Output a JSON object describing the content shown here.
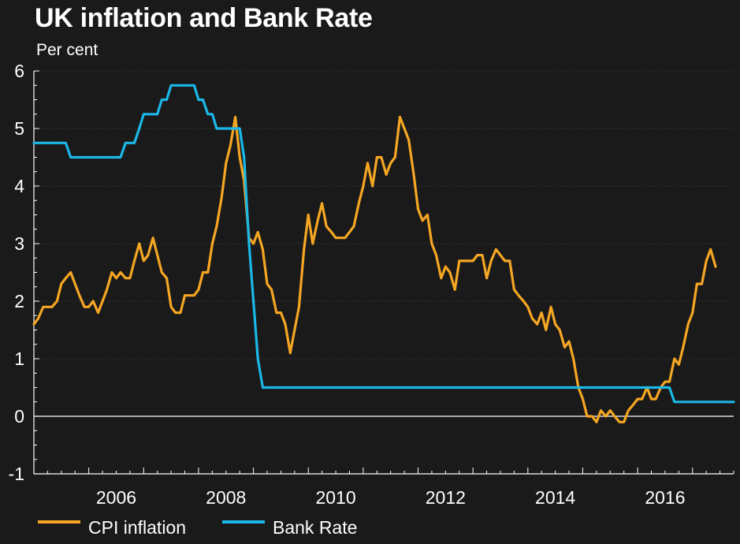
{
  "chart_data": {
    "type": "line",
    "title": "UK inflation and Bank Rate",
    "subtitle": "Per cent",
    "xlabel": "",
    "ylabel": "",
    "xlim": [
      2005.0,
      2017.75
    ],
    "ylim": [
      -1,
      6
    ],
    "yticks": [
      "-1",
      "0",
      "1",
      "2",
      "3",
      "4",
      "5",
      "6"
    ],
    "xticks": [
      {
        "value": 2006.5,
        "label": "2006"
      },
      {
        "value": 2008.5,
        "label": "2008"
      },
      {
        "value": 2010.5,
        "label": "2010"
      },
      {
        "value": 2012.5,
        "label": "2012"
      },
      {
        "value": 2014.5,
        "label": "2014"
      },
      {
        "value": 2016.5,
        "label": "2016"
      }
    ],
    "grid": true,
    "legend_position": "bottom",
    "series": [
      {
        "name": "CPI inflation",
        "color": "#f5a623",
        "points": [
          [
            2005.0,
            1.6
          ],
          [
            2005.08,
            1.7
          ],
          [
            2005.17,
            1.9
          ],
          [
            2005.25,
            1.9
          ],
          [
            2005.33,
            1.9
          ],
          [
            2005.42,
            2.0
          ],
          [
            2005.5,
            2.3
          ],
          [
            2005.58,
            2.4
          ],
          [
            2005.67,
            2.5
          ],
          [
            2005.75,
            2.3
          ],
          [
            2005.83,
            2.1
          ],
          [
            2005.92,
            1.9
          ],
          [
            2006.0,
            1.9
          ],
          [
            2006.08,
            2.0
          ],
          [
            2006.17,
            1.8
          ],
          [
            2006.25,
            2.0
          ],
          [
            2006.33,
            2.2
          ],
          [
            2006.42,
            2.5
          ],
          [
            2006.5,
            2.4
          ],
          [
            2006.58,
            2.5
          ],
          [
            2006.67,
            2.4
          ],
          [
            2006.75,
            2.4
          ],
          [
            2006.83,
            2.7
          ],
          [
            2006.92,
            3.0
          ],
          [
            2007.0,
            2.7
          ],
          [
            2007.08,
            2.8
          ],
          [
            2007.17,
            3.1
          ],
          [
            2007.25,
            2.8
          ],
          [
            2007.33,
            2.5
          ],
          [
            2007.42,
            2.4
          ],
          [
            2007.5,
            1.9
          ],
          [
            2007.58,
            1.8
          ],
          [
            2007.67,
            1.8
          ],
          [
            2007.75,
            2.1
          ],
          [
            2007.83,
            2.1
          ],
          [
            2007.92,
            2.1
          ],
          [
            2008.0,
            2.2
          ],
          [
            2008.08,
            2.5
          ],
          [
            2008.17,
            2.5
          ],
          [
            2008.25,
            3.0
          ],
          [
            2008.33,
            3.3
          ],
          [
            2008.42,
            3.8
          ],
          [
            2008.5,
            4.4
          ],
          [
            2008.58,
            4.7
          ],
          [
            2008.67,
            5.2
          ],
          [
            2008.75,
            4.5
          ],
          [
            2008.83,
            4.1
          ],
          [
            2008.92,
            3.1
          ],
          [
            2009.0,
            3.0
          ],
          [
            2009.08,
            3.2
          ],
          [
            2009.17,
            2.9
          ],
          [
            2009.25,
            2.3
          ],
          [
            2009.33,
            2.2
          ],
          [
            2009.42,
            1.8
          ],
          [
            2009.5,
            1.8
          ],
          [
            2009.58,
            1.6
          ],
          [
            2009.67,
            1.1
          ],
          [
            2009.75,
            1.5
          ],
          [
            2009.83,
            1.9
          ],
          [
            2009.92,
            2.9
          ],
          [
            2010.0,
            3.5
          ],
          [
            2010.08,
            3.0
          ],
          [
            2010.17,
            3.4
          ],
          [
            2010.25,
            3.7
          ],
          [
            2010.33,
            3.3
          ],
          [
            2010.42,
            3.2
          ],
          [
            2010.5,
            3.1
          ],
          [
            2010.58,
            3.1
          ],
          [
            2010.67,
            3.1
          ],
          [
            2010.75,
            3.2
          ],
          [
            2010.83,
            3.3
          ],
          [
            2010.92,
            3.7
          ],
          [
            2011.0,
            4.0
          ],
          [
            2011.08,
            4.4
          ],
          [
            2011.17,
            4.0
          ],
          [
            2011.25,
            4.5
          ],
          [
            2011.33,
            4.5
          ],
          [
            2011.42,
            4.2
          ],
          [
            2011.5,
            4.4
          ],
          [
            2011.58,
            4.5
          ],
          [
            2011.67,
            5.2
          ],
          [
            2011.75,
            5.0
          ],
          [
            2011.83,
            4.8
          ],
          [
            2011.92,
            4.2
          ],
          [
            2012.0,
            3.6
          ],
          [
            2012.08,
            3.4
          ],
          [
            2012.17,
            3.5
          ],
          [
            2012.25,
            3.0
          ],
          [
            2012.33,
            2.8
          ],
          [
            2012.42,
            2.4
          ],
          [
            2012.5,
            2.6
          ],
          [
            2012.58,
            2.5
          ],
          [
            2012.67,
            2.2
          ],
          [
            2012.75,
            2.7
          ],
          [
            2012.83,
            2.7
          ],
          [
            2012.92,
            2.7
          ],
          [
            2013.0,
            2.7
          ],
          [
            2013.08,
            2.8
          ],
          [
            2013.17,
            2.8
          ],
          [
            2013.25,
            2.4
          ],
          [
            2013.33,
            2.7
          ],
          [
            2013.42,
            2.9
          ],
          [
            2013.5,
            2.8
          ],
          [
            2013.58,
            2.7
          ],
          [
            2013.67,
            2.7
          ],
          [
            2013.75,
            2.2
          ],
          [
            2013.83,
            2.1
          ],
          [
            2013.92,
            2.0
          ],
          [
            2014.0,
            1.9
          ],
          [
            2014.08,
            1.7
          ],
          [
            2014.17,
            1.6
          ],
          [
            2014.25,
            1.8
          ],
          [
            2014.33,
            1.5
          ],
          [
            2014.42,
            1.9
          ],
          [
            2014.5,
            1.6
          ],
          [
            2014.58,
            1.5
          ],
          [
            2014.67,
            1.2
          ],
          [
            2014.75,
            1.3
          ],
          [
            2014.83,
            1.0
          ],
          [
            2014.92,
            0.5
          ],
          [
            2015.0,
            0.3
          ],
          [
            2015.08,
            0.0
          ],
          [
            2015.17,
            0.0
          ],
          [
            2015.25,
            -0.1
          ],
          [
            2015.33,
            0.1
          ],
          [
            2015.42,
            0.0
          ],
          [
            2015.5,
            0.1
          ],
          [
            2015.58,
            0.0
          ],
          [
            2015.67,
            -0.1
          ],
          [
            2015.75,
            -0.1
          ],
          [
            2015.83,
            0.1
          ],
          [
            2015.92,
            0.2
          ],
          [
            2016.0,
            0.3
          ],
          [
            2016.08,
            0.3
          ],
          [
            2016.17,
            0.5
          ],
          [
            2016.25,
            0.3
          ],
          [
            2016.33,
            0.3
          ],
          [
            2016.42,
            0.5
          ],
          [
            2016.5,
            0.6
          ],
          [
            2016.58,
            0.6
          ],
          [
            2016.67,
            1.0
          ],
          [
            2016.75,
            0.9
          ],
          [
            2016.83,
            1.2
          ],
          [
            2016.92,
            1.6
          ],
          [
            2017.0,
            1.8
          ],
          [
            2017.08,
            2.3
          ],
          [
            2017.17,
            2.3
          ],
          [
            2017.25,
            2.7
          ],
          [
            2017.33,
            2.9
          ],
          [
            2017.42,
            2.6
          ]
        ]
      },
      {
        "name": "Bank Rate",
        "color": "#1ab8e8",
        "points": [
          [
            2005.0,
            4.75
          ],
          [
            2005.58,
            4.75
          ],
          [
            2005.67,
            4.5
          ],
          [
            2006.58,
            4.5
          ],
          [
            2006.67,
            4.75
          ],
          [
            2006.83,
            4.75
          ],
          [
            2006.92,
            5.0
          ],
          [
            2007.0,
            5.25
          ],
          [
            2007.25,
            5.25
          ],
          [
            2007.33,
            5.5
          ],
          [
            2007.42,
            5.5
          ],
          [
            2007.5,
            5.75
          ],
          [
            2007.92,
            5.75
          ],
          [
            2008.0,
            5.5
          ],
          [
            2008.08,
            5.5
          ],
          [
            2008.17,
            5.25
          ],
          [
            2008.25,
            5.25
          ],
          [
            2008.33,
            5.0
          ],
          [
            2008.75,
            5.0
          ],
          [
            2008.83,
            4.5
          ],
          [
            2008.92,
            3.0
          ],
          [
            2009.0,
            2.0
          ],
          [
            2009.08,
            1.0
          ],
          [
            2009.17,
            0.5
          ],
          [
            2016.58,
            0.5
          ],
          [
            2016.67,
            0.25
          ],
          [
            2017.75,
            0.25
          ]
        ]
      }
    ]
  }
}
